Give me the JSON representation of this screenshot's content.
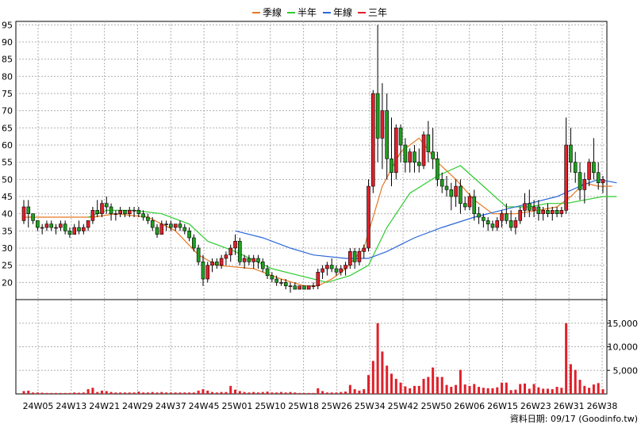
{
  "chart_data": {
    "type": "candlestick",
    "legend": [
      {
        "name": "季線",
        "color": "#e87722"
      },
      {
        "name": "半年",
        "color": "#2ecc2e"
      },
      {
        "name": "年線",
        "color": "#2b67d8"
      },
      {
        "name": "三年",
        "color": "#e0202a"
      }
    ],
    "x_ticks": [
      "24W05",
      "24W13",
      "24W21",
      "24W29",
      "24W37",
      "24W45",
      "25W01",
      "25W10",
      "25W18",
      "25W26",
      "25W34",
      "25W42",
      "25W50",
      "26W06",
      "26W15",
      "26W23",
      "26W31",
      "26W38"
    ],
    "price_axis": {
      "ylim": [
        15,
        96
      ],
      "ticks": [
        20,
        25,
        30,
        35,
        40,
        45,
        50,
        55,
        60,
        65,
        70,
        75,
        80,
        85,
        90,
        95
      ]
    },
    "volume_axis": {
      "ylim": [
        0,
        20000
      ],
      "ticks": [
        "5,000",
        "10,000",
        "15,000"
      ],
      "tick_values": [
        5000,
        10000,
        15000
      ]
    },
    "candles": [
      [
        38,
        44,
        37,
        42,
        600
      ],
      [
        42,
        44,
        36,
        40,
        700
      ],
      [
        40,
        40,
        37,
        38,
        300
      ],
      [
        38,
        38,
        35,
        36,
        300
      ],
      [
        36,
        37,
        34,
        36,
        250
      ],
      [
        36,
        38,
        35,
        37,
        200
      ],
      [
        37,
        38,
        35,
        36,
        200
      ],
      [
        36,
        37,
        34,
        36,
        200
      ],
      [
        36,
        38,
        35,
        37,
        200
      ],
      [
        37,
        38,
        34,
        35,
        200
      ],
      [
        35,
        36,
        33,
        34,
        200
      ],
      [
        34,
        37,
        34,
        36,
        300
      ],
      [
        36,
        38,
        34,
        35,
        250
      ],
      [
        35,
        37,
        34,
        36,
        300
      ],
      [
        36,
        38,
        35,
        38,
        1000
      ],
      [
        38,
        42,
        37,
        41,
        1300
      ],
      [
        41,
        44,
        39,
        40,
        400
      ],
      [
        40,
        44,
        39,
        43,
        700
      ],
      [
        43,
        45,
        40,
        42,
        600
      ],
      [
        42,
        43,
        38,
        40,
        400
      ],
      [
        40,
        41,
        38,
        40,
        300
      ],
      [
        40,
        42,
        39,
        41,
        300
      ],
      [
        41,
        41,
        39,
        40,
        300
      ],
      [
        40,
        42,
        39,
        41,
        300
      ],
      [
        41,
        42,
        39,
        41,
        300
      ],
      [
        41,
        42,
        39,
        40,
        500
      ],
      [
        40,
        41,
        38,
        39,
        300
      ],
      [
        39,
        40,
        37,
        38,
        300
      ],
      [
        38,
        39,
        35,
        36,
        400
      ],
      [
        36,
        37,
        33,
        34,
        300
      ],
      [
        34,
        38,
        34,
        37,
        400
      ],
      [
        37,
        38,
        35,
        37,
        300
      ],
      [
        37,
        38,
        35,
        36,
        300
      ],
      [
        36,
        37,
        35,
        37,
        300
      ],
      [
        37,
        38,
        35,
        36,
        300
      ],
      [
        36,
        37,
        34,
        35,
        300
      ],
      [
        35,
        36,
        32,
        33,
        300
      ],
      [
        33,
        34,
        29,
        30,
        300
      ],
      [
        30,
        31,
        25,
        26,
        700
      ],
      [
        26,
        28,
        19,
        21,
        1000
      ],
      [
        21,
        26,
        20,
        25,
        700
      ],
      [
        25,
        27,
        23,
        26,
        400
      ],
      [
        26,
        27,
        24,
        25,
        300
      ],
      [
        25,
        28,
        24,
        27,
        400
      ],
      [
        27,
        29,
        25,
        28,
        400
      ],
      [
        28,
        31,
        26,
        30,
        1700
      ],
      [
        30,
        34,
        28,
        32,
        900
      ],
      [
        32,
        33,
        25,
        26,
        600
      ],
      [
        26,
        28,
        24,
        27,
        400
      ],
      [
        27,
        28,
        25,
        26,
        300
      ],
      [
        26,
        28,
        24,
        27,
        400
      ],
      [
        27,
        28,
        24,
        26,
        300
      ],
      [
        26,
        27,
        23,
        24,
        400
      ],
      [
        24,
        25,
        21,
        22,
        500
      ],
      [
        22,
        23,
        20,
        21,
        300
      ],
      [
        21,
        22,
        19,
        20,
        300
      ],
      [
        20,
        21,
        19,
        20,
        400
      ],
      [
        20,
        21,
        18,
        19,
        300
      ],
      [
        19,
        20,
        17,
        19,
        400
      ],
      [
        19,
        20,
        18,
        18,
        300
      ],
      [
        18,
        19,
        18,
        19,
        200
      ],
      [
        19,
        19,
        18,
        18,
        200
      ],
      [
        18,
        19,
        18,
        19,
        200
      ],
      [
        19,
        20,
        18,
        19,
        200
      ],
      [
        19,
        24,
        18,
        23,
        1200
      ],
      [
        23,
        25,
        21,
        24,
        600
      ],
      [
        24,
        26,
        22,
        25,
        300
      ],
      [
        25,
        27,
        23,
        24,
        300
      ],
      [
        24,
        25,
        22,
        23,
        300
      ],
      [
        23,
        25,
        22,
        24,
        400
      ],
      [
        24,
        26,
        22,
        25,
        500
      ],
      [
        25,
        30,
        24,
        29,
        1900
      ],
      [
        29,
        30,
        24,
        26,
        1000
      ],
      [
        26,
        30,
        25,
        29,
        700
      ],
      [
        29,
        31,
        27,
        30,
        1000
      ],
      [
        30,
        50,
        29,
        48,
        4000
      ],
      [
        48,
        76,
        46,
        75,
        7000
      ],
      [
        75,
        95,
        55,
        62,
        15000
      ],
      [
        62,
        78,
        53,
        70,
        9000
      ],
      [
        70,
        75,
        50,
        56,
        6000
      ],
      [
        56,
        68,
        48,
        52,
        4300
      ],
      [
        52,
        66,
        50,
        65,
        3200
      ],
      [
        65,
        66,
        55,
        60,
        2400
      ],
      [
        60,
        62,
        52,
        55,
        1600
      ],
      [
        55,
        59,
        52,
        58,
        1200
      ],
      [
        58,
        60,
        52,
        55,
        1700
      ],
      [
        55,
        59,
        52,
        54,
        1700
      ],
      [
        54,
        64,
        53,
        63,
        3200
      ],
      [
        63,
        67,
        55,
        58,
        3600
      ],
      [
        58,
        65,
        53,
        56,
        5600
      ],
      [
        56,
        58,
        48,
        50,
        3600
      ],
      [
        50,
        52,
        46,
        48,
        3600
      ],
      [
        48,
        51,
        45,
        47,
        1900
      ],
      [
        47,
        49,
        41,
        45,
        1500
      ],
      [
        45,
        50,
        42,
        48,
        1900
      ],
      [
        48,
        50,
        40,
        43,
        5100
      ],
      [
        43,
        45,
        41,
        42,
        2000
      ],
      [
        42,
        46,
        41,
        45,
        1700
      ],
      [
        45,
        47,
        38,
        40,
        2100
      ],
      [
        40,
        42,
        37,
        39,
        1500
      ],
      [
        39,
        40,
        36,
        38,
        1300
      ],
      [
        38,
        39,
        35,
        37,
        1200
      ],
      [
        37,
        38,
        35,
        36,
        1200
      ],
      [
        36,
        39,
        35,
        38,
        1400
      ],
      [
        38,
        41,
        36,
        40,
        2400
      ],
      [
        40,
        43,
        37,
        38,
        2400
      ],
      [
        38,
        41,
        35,
        36,
        800
      ],
      [
        36,
        39,
        34,
        38,
        900
      ],
      [
        38,
        42,
        37,
        41,
        2100
      ],
      [
        41,
        46,
        39,
        43,
        2200
      ],
      [
        43,
        47,
        39,
        41,
        1100
      ],
      [
        41,
        44,
        39,
        42,
        2100
      ],
      [
        42,
        44,
        38,
        40,
        1400
      ],
      [
        40,
        42,
        38,
        41,
        1100
      ],
      [
        41,
        43,
        39,
        40,
        1100
      ],
      [
        40,
        42,
        38,
        41,
        1000
      ],
      [
        41,
        42,
        39,
        40,
        1500
      ],
      [
        40,
        42,
        39,
        41,
        1300
      ],
      [
        41,
        68,
        40,
        60,
        15000
      ],
      [
        60,
        65,
        52,
        55,
        6300
      ],
      [
        55,
        58,
        49,
        52,
        5100
      ],
      [
        52,
        55,
        44,
        47,
        3000
      ],
      [
        47,
        52,
        43,
        50,
        1700
      ],
      [
        50,
        56,
        48,
        55,
        1300
      ],
      [
        55,
        62,
        50,
        52,
        2000
      ],
      [
        52,
        55,
        47,
        49,
        2300
      ],
      [
        49,
        51,
        46,
        50,
        1000
      ]
    ],
    "lines": {
      "季線": [
        [
          0,
          39
        ],
        [
          15,
          39
        ],
        [
          20,
          40
        ],
        [
          27,
          39
        ],
        [
          33,
          35
        ],
        [
          38,
          28
        ],
        [
          42,
          25
        ],
        [
          50,
          24
        ],
        [
          56,
          21
        ],
        [
          61,
          19
        ],
        [
          64,
          19
        ],
        [
          67,
          21
        ],
        [
          70,
          24
        ],
        [
          74,
          30
        ],
        [
          78,
          48
        ],
        [
          82,
          58
        ],
        [
          86,
          62
        ],
        [
          90,
          55
        ],
        [
          94,
          50
        ],
        [
          98,
          44
        ],
        [
          102,
          40
        ],
        [
          107,
          40
        ],
        [
          112,
          41
        ],
        [
          116,
          42
        ],
        [
          119,
          45
        ],
        [
          122,
          49
        ],
        [
          125,
          48
        ],
        [
          128,
          48
        ]
      ],
      "半年": [
        [
          14,
          39
        ],
        [
          18,
          41
        ],
        [
          24,
          41
        ],
        [
          30,
          40
        ],
        [
          36,
          37
        ],
        [
          40,
          32
        ],
        [
          46,
          29
        ],
        [
          54,
          24
        ],
        [
          60,
          22
        ],
        [
          66,
          20
        ],
        [
          71,
          22
        ],
        [
          75,
          25
        ],
        [
          79,
          36
        ],
        [
          84,
          46
        ],
        [
          90,
          51
        ],
        [
          95,
          54
        ],
        [
          100,
          48
        ],
        [
          105,
          42
        ],
        [
          110,
          42
        ],
        [
          114,
          43
        ],
        [
          118,
          43
        ],
        [
          122,
          44
        ],
        [
          126,
          45
        ],
        [
          129,
          45
        ]
      ],
      "年線": [
        [
          46,
          35
        ],
        [
          52,
          33
        ],
        [
          58,
          30
        ],
        [
          63,
          28
        ],
        [
          70,
          27
        ],
        [
          75,
          27
        ],
        [
          79,
          29
        ],
        [
          85,
          33
        ],
        [
          91,
          36
        ],
        [
          98,
          39
        ],
        [
          104,
          41
        ],
        [
          110,
          43
        ],
        [
          116,
          45
        ],
        [
          121,
          48
        ],
        [
          125,
          50
        ],
        [
          129,
          49
        ]
      ],
      "三年": []
    },
    "credit": "資料日期: 09/17 (Goodinfo.tw)"
  }
}
